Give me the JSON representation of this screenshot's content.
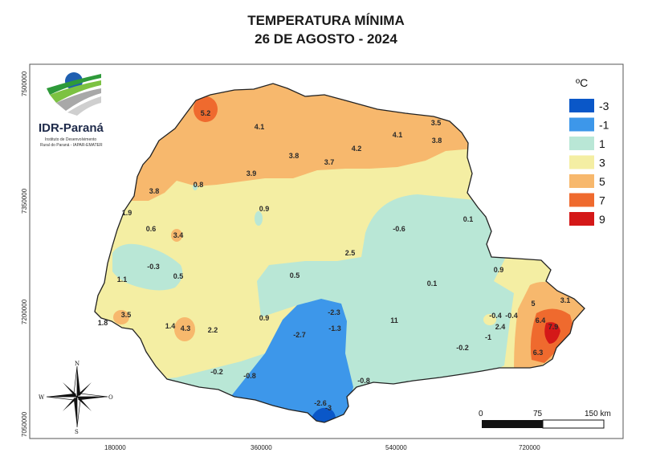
{
  "title": {
    "line1": "TEMPERATURA MÍNIMA",
    "line2": "26 DE AGOSTO - 2024"
  },
  "logo": {
    "name": "IDR-Paraná",
    "subtitle_line1": "Instituto de Desenvolvimento",
    "subtitle_line2": "Rural do Paraná - IAPAR-EMATER"
  },
  "legend": {
    "unit": "ºC",
    "items": [
      {
        "label": "-3",
        "color": "#0a57c8"
      },
      {
        "label": "-1",
        "color": "#3d97ea"
      },
      {
        "label": "1",
        "color": "#b9e7d6"
      },
      {
        "label": "3",
        "color": "#f4eea3"
      },
      {
        "label": "5",
        "color": "#f7b86d"
      },
      {
        "label": "7",
        "color": "#ef6a2e"
      },
      {
        "label": "9",
        "color": "#d41818"
      }
    ]
  },
  "axes": {
    "y_ticks": [
      "7500000",
      "7350000",
      "7200000",
      "7050000"
    ],
    "x_ticks": [
      "180000",
      "360000",
      "540000",
      "720000"
    ]
  },
  "compass": {
    "n": "N",
    "s": "S",
    "e": "O",
    "w": "W"
  },
  "scale_bar": {
    "labels": [
      "0",
      "75",
      "150 km"
    ]
  },
  "station_values": [
    "5.2",
    "4.1",
    "3.5",
    "4.1",
    "3.8",
    "3.8",
    "4.2",
    "3.7",
    "3.9",
    "3.8",
    "0.8",
    "1.9",
    "0.9",
    "0.6",
    "3.4",
    "0.1",
    "-0.6",
    "2.5",
    "-0.3",
    "0.5",
    "0.5",
    "1.1",
    "0.9",
    "0.1",
    "3.5",
    "1.8",
    "1.4",
    "4.3",
    "2.2",
    "0.9",
    "-2.3",
    "-2.7",
    "-1.3",
    "11",
    "5",
    "3.1",
    "-0.4",
    "-0.4",
    "2.4",
    "6.4",
    "7.9",
    "-1",
    "-0.2",
    "6.3",
    "-0.2",
    "-0.8",
    "-0.8",
    "-2.6",
    "-3"
  ],
  "colors": {
    "border": "#222222",
    "frame": "#555555"
  }
}
